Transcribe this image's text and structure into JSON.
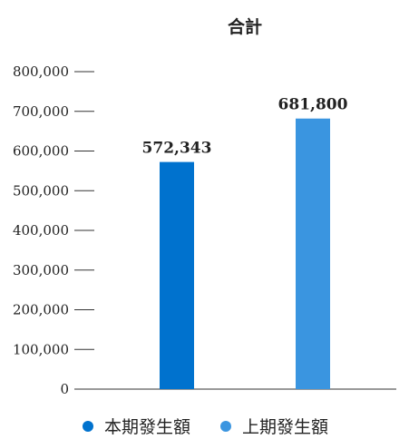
{
  "chart_data": {
    "type": "bar",
    "title": "合計",
    "xlabel": "",
    "ylabel": "",
    "ylim": [
      0,
      800000
    ],
    "yticks": [
      0,
      100000,
      200000,
      300000,
      400000,
      500000,
      600000,
      700000,
      800000
    ],
    "ytick_labels": [
      "0",
      "100,000",
      "200,000",
      "300,000",
      "400,000",
      "500,000",
      "600,000",
      "700,000",
      "800,000"
    ],
    "grid": false,
    "legend_position": "bottom",
    "series": [
      {
        "name": "本期發生額",
        "values": [
          572343
        ],
        "value_labels": [
          "572,343"
        ],
        "color": "#0072CE"
      },
      {
        "name": "上期發生額",
        "values": [
          681800
        ],
        "value_labels": [
          "681,800"
        ],
        "color": "#3A95E0"
      }
    ]
  }
}
